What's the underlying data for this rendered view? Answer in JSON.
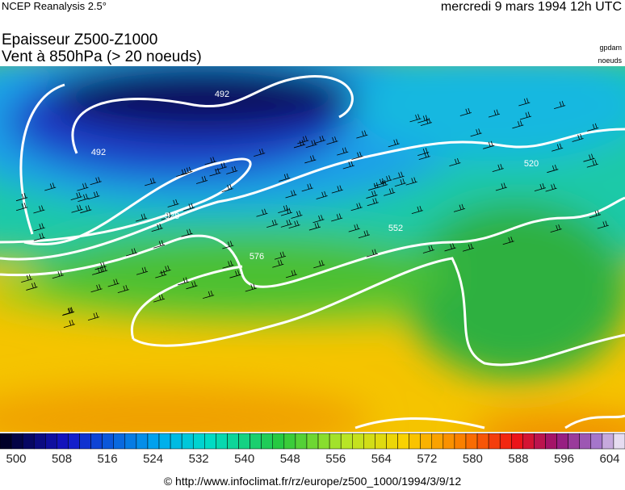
{
  "header": {
    "source": "NCEP Reanalysis 2.5°",
    "date": "mercredi 9 mars 1994 12h UTC",
    "title": "Epaisseur Z500-Z1000",
    "subtitle": "Vent à 850hPa (> 20 noeuds)",
    "unit_thickness": "gpdam",
    "unit_wind": "noeuds"
  },
  "map": {
    "contour_labels": [
      492,
      492,
      528,
      576,
      520,
      552
    ]
  },
  "colorbar": {
    "ticks": [
      500,
      508,
      516,
      524,
      532,
      540,
      548,
      556,
      564,
      572,
      580,
      588,
      596,
      604
    ]
  },
  "footer": "© http://www.infoclimat.fr/rz/europe/z500_1000/1994/3/9/12"
}
